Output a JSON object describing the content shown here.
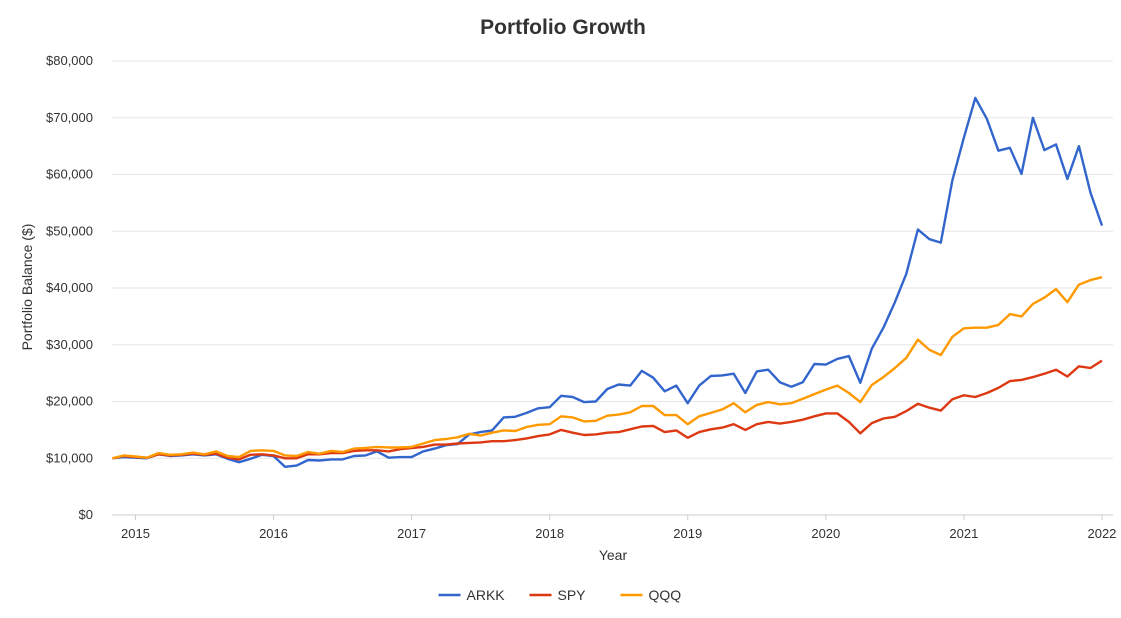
{
  "chart_data": {
    "type": "line",
    "title": "Portfolio Growth",
    "xlabel": "Year",
    "ylabel": "Portfolio Balance ($)",
    "ylim": [
      0,
      80000
    ],
    "xlim": [
      2014.83,
      2022.08
    ],
    "y_ticks": [
      0,
      10000,
      20000,
      30000,
      40000,
      50000,
      60000,
      70000,
      80000
    ],
    "y_tick_labels": [
      "$0",
      "$10,000",
      "$20,000",
      "$30,000",
      "$40,000",
      "$50,000",
      "$60,000",
      "$70,000",
      "$80,000"
    ],
    "x_ticks": [
      2015,
      2016,
      2017,
      2018,
      2019,
      2020,
      2021,
      2022
    ],
    "x_tick_labels": [
      "2015",
      "2016",
      "2017",
      "2018",
      "2019",
      "2020",
      "2021",
      "2022"
    ],
    "grid": true,
    "legend_position": "bottom-center",
    "series": [
      {
        "name": "ARKK",
        "color": "#3366cc",
        "points": [
          [
            2014.833,
            10000
          ],
          [
            2014.917,
            10200
          ],
          [
            2015.0,
            10100
          ],
          [
            2015.083,
            10000
          ],
          [
            2015.167,
            10700
          ],
          [
            2015.25,
            10400
          ],
          [
            2015.333,
            10500
          ],
          [
            2015.417,
            10700
          ],
          [
            2015.5,
            10500
          ],
          [
            2015.583,
            10700
          ],
          [
            2015.667,
            9900
          ],
          [
            2015.75,
            9300
          ],
          [
            2015.833,
            9900
          ],
          [
            2015.917,
            10600
          ],
          [
            2016.0,
            10400
          ],
          [
            2016.083,
            8500
          ],
          [
            2016.167,
            8700
          ],
          [
            2016.25,
            9700
          ],
          [
            2016.333,
            9600
          ],
          [
            2016.417,
            9800
          ],
          [
            2016.5,
            9800
          ],
          [
            2016.583,
            10400
          ],
          [
            2016.667,
            10500
          ],
          [
            2016.75,
            11200
          ],
          [
            2016.833,
            10100
          ],
          [
            2016.917,
            10200
          ],
          [
            2017.0,
            10200
          ],
          [
            2017.083,
            11200
          ],
          [
            2017.167,
            11700
          ],
          [
            2017.25,
            12300
          ],
          [
            2017.333,
            12500
          ],
          [
            2017.417,
            14200
          ],
          [
            2017.5,
            14600
          ],
          [
            2017.583,
            14900
          ],
          [
            2017.667,
            17200
          ],
          [
            2017.75,
            17300
          ],
          [
            2017.833,
            18000
          ],
          [
            2017.917,
            18800
          ],
          [
            2018.0,
            19000
          ],
          [
            2018.083,
            21000
          ],
          [
            2018.167,
            20800
          ],
          [
            2018.25,
            19900
          ],
          [
            2018.333,
            20000
          ],
          [
            2018.417,
            22200
          ],
          [
            2018.5,
            23000
          ],
          [
            2018.583,
            22800
          ],
          [
            2018.667,
            25400
          ],
          [
            2018.75,
            24200
          ],
          [
            2018.833,
            21800
          ],
          [
            2018.917,
            22800
          ],
          [
            2019.0,
            19700
          ],
          [
            2019.083,
            22800
          ],
          [
            2019.167,
            24500
          ],
          [
            2019.25,
            24600
          ],
          [
            2019.333,
            24900
          ],
          [
            2019.417,
            21500
          ],
          [
            2019.5,
            25300
          ],
          [
            2019.583,
            25600
          ],
          [
            2019.667,
            23400
          ],
          [
            2019.75,
            22600
          ],
          [
            2019.833,
            23400
          ],
          [
            2019.917,
            26600
          ],
          [
            2020.0,
            26500
          ],
          [
            2020.083,
            27500
          ],
          [
            2020.167,
            28000
          ],
          [
            2020.25,
            23300
          ],
          [
            2020.333,
            29300
          ],
          [
            2020.417,
            33000
          ],
          [
            2020.5,
            37500
          ],
          [
            2020.583,
            42500
          ],
          [
            2020.667,
            50300
          ],
          [
            2020.75,
            48600
          ],
          [
            2020.833,
            48000
          ],
          [
            2020.917,
            59000
          ],
          [
            2021.0,
            66500
          ],
          [
            2021.083,
            73500
          ],
          [
            2021.167,
            69800
          ],
          [
            2021.25,
            64200
          ],
          [
            2021.333,
            64700
          ],
          [
            2021.417,
            60100
          ],
          [
            2021.5,
            70000
          ],
          [
            2021.583,
            64300
          ],
          [
            2021.667,
            65300
          ],
          [
            2021.75,
            59200
          ],
          [
            2021.833,
            65000
          ],
          [
            2021.917,
            56800
          ],
          [
            2022.0,
            51000
          ]
        ]
      },
      {
        "name": "SPY",
        "color": "#dc3912",
        "points": [
          [
            2014.833,
            10000
          ],
          [
            2014.917,
            10400
          ],
          [
            2015.0,
            10200
          ],
          [
            2015.083,
            10100
          ],
          [
            2015.167,
            10700
          ],
          [
            2015.25,
            10500
          ],
          [
            2015.333,
            10600
          ],
          [
            2015.417,
            10800
          ],
          [
            2015.5,
            10600
          ],
          [
            2015.583,
            10800
          ],
          [
            2015.667,
            10100
          ],
          [
            2015.75,
            9800
          ],
          [
            2015.833,
            10600
          ],
          [
            2015.917,
            10700
          ],
          [
            2016.0,
            10500
          ],
          [
            2016.083,
            10000
          ],
          [
            2016.167,
            10000
          ],
          [
            2016.25,
            10700
          ],
          [
            2016.333,
            10700
          ],
          [
            2016.417,
            10900
          ],
          [
            2016.5,
            10900
          ],
          [
            2016.583,
            11300
          ],
          [
            2016.667,
            11400
          ],
          [
            2016.75,
            11400
          ],
          [
            2016.833,
            11200
          ],
          [
            2016.917,
            11600
          ],
          [
            2017.0,
            11800
          ],
          [
            2017.083,
            12000
          ],
          [
            2017.167,
            12400
          ],
          [
            2017.25,
            12400
          ],
          [
            2017.333,
            12600
          ],
          [
            2017.417,
            12700
          ],
          [
            2017.5,
            12800
          ],
          [
            2017.583,
            13000
          ],
          [
            2017.667,
            13000
          ],
          [
            2017.75,
            13200
          ],
          [
            2017.833,
            13500
          ],
          [
            2017.917,
            13900
          ],
          [
            2018.0,
            14200
          ],
          [
            2018.083,
            15000
          ],
          [
            2018.167,
            14500
          ],
          [
            2018.25,
            14100
          ],
          [
            2018.333,
            14200
          ],
          [
            2018.417,
            14500
          ],
          [
            2018.5,
            14600
          ],
          [
            2018.583,
            15100
          ],
          [
            2018.667,
            15600
          ],
          [
            2018.75,
            15700
          ],
          [
            2018.833,
            14600
          ],
          [
            2018.917,
            14900
          ],
          [
            2019.0,
            13600
          ],
          [
            2019.083,
            14600
          ],
          [
            2019.167,
            15100
          ],
          [
            2019.25,
            15400
          ],
          [
            2019.333,
            16000
          ],
          [
            2019.417,
            15000
          ],
          [
            2019.5,
            16000
          ],
          [
            2019.583,
            16400
          ],
          [
            2019.667,
            16100
          ],
          [
            2019.75,
            16400
          ],
          [
            2019.833,
            16800
          ],
          [
            2019.917,
            17400
          ],
          [
            2020.0,
            17900
          ],
          [
            2020.083,
            17900
          ],
          [
            2020.167,
            16400
          ],
          [
            2020.25,
            14400
          ],
          [
            2020.333,
            16200
          ],
          [
            2020.417,
            17000
          ],
          [
            2020.5,
            17300
          ],
          [
            2020.583,
            18300
          ],
          [
            2020.667,
            19600
          ],
          [
            2020.75,
            18900
          ],
          [
            2020.833,
            18400
          ],
          [
            2020.917,
            20400
          ],
          [
            2021.0,
            21100
          ],
          [
            2021.083,
            20800
          ],
          [
            2021.167,
            21500
          ],
          [
            2021.25,
            22400
          ],
          [
            2021.333,
            23600
          ],
          [
            2021.417,
            23800
          ],
          [
            2021.5,
            24300
          ],
          [
            2021.583,
            24900
          ],
          [
            2021.667,
            25600
          ],
          [
            2021.75,
            24400
          ],
          [
            2021.833,
            26200
          ],
          [
            2021.917,
            25900
          ],
          [
            2022.0,
            27200
          ]
        ]
      },
      {
        "name": "QQQ",
        "color": "#ff9900",
        "points": [
          [
            2014.833,
            10000
          ],
          [
            2014.917,
            10500
          ],
          [
            2015.0,
            10300
          ],
          [
            2015.083,
            10100
          ],
          [
            2015.167,
            10900
          ],
          [
            2015.25,
            10600
          ],
          [
            2015.333,
            10700
          ],
          [
            2015.417,
            11000
          ],
          [
            2015.5,
            10700
          ],
          [
            2015.583,
            11200
          ],
          [
            2015.667,
            10400
          ],
          [
            2015.75,
            10200
          ],
          [
            2015.833,
            11300
          ],
          [
            2015.917,
            11400
          ],
          [
            2016.0,
            11300
          ],
          [
            2016.083,
            10500
          ],
          [
            2016.167,
            10400
          ],
          [
            2016.25,
            11100
          ],
          [
            2016.333,
            10800
          ],
          [
            2016.417,
            11300
          ],
          [
            2016.5,
            11100
          ],
          [
            2016.583,
            11700
          ],
          [
            2016.667,
            11800
          ],
          [
            2016.75,
            12000
          ],
          [
            2016.833,
            11900
          ],
          [
            2016.917,
            11900
          ],
          [
            2017.0,
            12000
          ],
          [
            2017.083,
            12600
          ],
          [
            2017.167,
            13200
          ],
          [
            2017.25,
            13400
          ],
          [
            2017.333,
            13700
          ],
          [
            2017.417,
            14300
          ],
          [
            2017.5,
            14000
          ],
          [
            2017.583,
            14500
          ],
          [
            2017.667,
            14900
          ],
          [
            2017.75,
            14800
          ],
          [
            2017.833,
            15500
          ],
          [
            2017.917,
            15900
          ],
          [
            2018.0,
            16000
          ],
          [
            2018.083,
            17400
          ],
          [
            2018.167,
            17200
          ],
          [
            2018.25,
            16500
          ],
          [
            2018.333,
            16600
          ],
          [
            2018.417,
            17500
          ],
          [
            2018.5,
            17700
          ],
          [
            2018.583,
            18100
          ],
          [
            2018.667,
            19200
          ],
          [
            2018.75,
            19200
          ],
          [
            2018.833,
            17600
          ],
          [
            2018.917,
            17600
          ],
          [
            2019.0,
            16000
          ],
          [
            2019.083,
            17400
          ],
          [
            2019.167,
            18000
          ],
          [
            2019.25,
            18600
          ],
          [
            2019.333,
            19700
          ],
          [
            2019.417,
            18100
          ],
          [
            2019.5,
            19400
          ],
          [
            2019.583,
            19900
          ],
          [
            2019.667,
            19500
          ],
          [
            2019.75,
            19700
          ],
          [
            2019.833,
            20500
          ],
          [
            2019.917,
            21300
          ],
          [
            2020.0,
            22100
          ],
          [
            2020.083,
            22800
          ],
          [
            2020.167,
            21500
          ],
          [
            2020.25,
            19900
          ],
          [
            2020.333,
            22900
          ],
          [
            2020.417,
            24300
          ],
          [
            2020.5,
            25900
          ],
          [
            2020.583,
            27700
          ],
          [
            2020.667,
            30900
          ],
          [
            2020.75,
            29100
          ],
          [
            2020.833,
            28200
          ],
          [
            2020.917,
            31400
          ],
          [
            2021.0,
            32900
          ],
          [
            2021.083,
            33000
          ],
          [
            2021.167,
            33000
          ],
          [
            2021.25,
            33500
          ],
          [
            2021.333,
            35400
          ],
          [
            2021.417,
            35000
          ],
          [
            2021.5,
            37200
          ],
          [
            2021.583,
            38300
          ],
          [
            2021.667,
            39800
          ],
          [
            2021.75,
            37500
          ],
          [
            2021.833,
            40600
          ],
          [
            2021.917,
            41400
          ],
          [
            2022.0,
            41900
          ]
        ]
      }
    ]
  }
}
